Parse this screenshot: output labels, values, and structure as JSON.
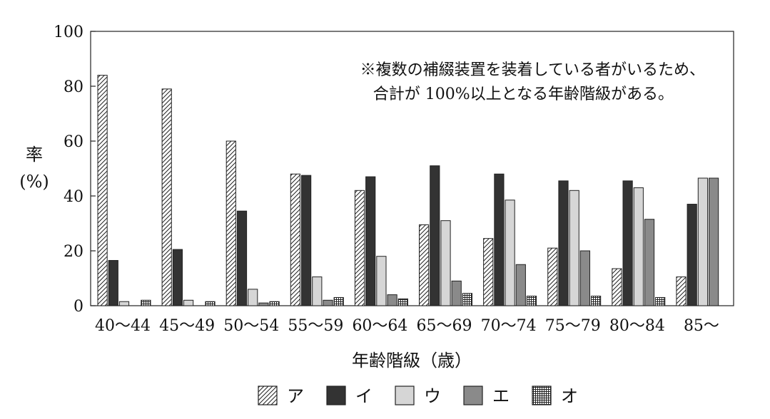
{
  "chart_data": {
    "type": "bar",
    "note": [
      "※複数の補綴装置を装着している者がいるため、",
      "合計が 100%以上となる年齢階級がある。"
    ],
    "ylabel_lines": [
      "率",
      "(%)"
    ],
    "xlabel": "年齢階級（歳）",
    "ylim": [
      0,
      100
    ],
    "yticks": [
      0,
      20,
      40,
      60,
      80,
      100
    ],
    "grid": false,
    "legend_position": "bottom-center",
    "categories": [
      "40～44",
      "45～49",
      "50～54",
      "55～59",
      "60～64",
      "65～69",
      "70～74",
      "75～79",
      "80～84",
      "85～"
    ],
    "series": [
      {
        "name": "ア",
        "pattern": "diagonal-hatch",
        "color": "#ffffff",
        "values": [
          84,
          79,
          60,
          48,
          42,
          29.5,
          24.5,
          21,
          13.5,
          10.5
        ]
      },
      {
        "name": "イ",
        "pattern": "solid",
        "color": "#333333",
        "values": [
          16.5,
          20.5,
          34.5,
          47.5,
          47,
          51,
          48,
          45.5,
          45.5,
          37
        ]
      },
      {
        "name": "ウ",
        "pattern": "solid",
        "color": "#d6d6d6",
        "values": [
          1.5,
          2,
          6,
          10.5,
          18,
          31,
          38.5,
          42,
          43,
          46.5
        ]
      },
      {
        "name": "エ",
        "pattern": "solid",
        "color": "#8a8a8a",
        "values": [
          0,
          0,
          1,
          2,
          4,
          9,
          15,
          20,
          31.5,
          46.5
        ]
      },
      {
        "name": "オ",
        "pattern": "grid-hatch",
        "color": "#ffffff",
        "values": [
          2,
          1.5,
          1.5,
          3,
          2.5,
          4.5,
          3.5,
          3.5,
          3,
          0
        ]
      }
    ]
  }
}
